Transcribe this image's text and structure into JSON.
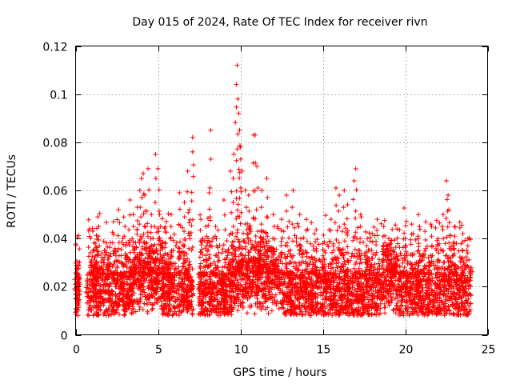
{
  "chart_data": {
    "type": "scatter",
    "title": "Day 015 of 2024, Rate Of TEC Index for receiver rivn",
    "xlabel": "GPS time / hours",
    "ylabel": "ROTI / TECUs",
    "xlim": [
      0,
      25
    ],
    "ylim": [
      0,
      0.12
    ],
    "x_ticks": [
      0,
      5,
      10,
      15,
      20,
      25
    ],
    "x_tick_labels": [
      "0",
      "5",
      "10",
      "15",
      "20",
      "25"
    ],
    "y_ticks": [
      0,
      0.02,
      0.04,
      0.06,
      0.08,
      0.1,
      0.12
    ],
    "y_tick_labels": [
      "0",
      "0.02",
      "0.04",
      "0.06",
      "0.08",
      "0.1",
      "0.12"
    ],
    "grid": true,
    "marker": "+",
    "color": "#ff0000",
    "data_gap_hours": [
      0.25,
      0.7
    ],
    "data_gap2_hours": [
      7.15,
      7.45
    ],
    "series": [
      {
        "name": "ROTI",
        "points": [
          [
            0.0,
            0.015
          ],
          [
            0.05,
            0.011
          ],
          [
            0.1,
            0.02
          ],
          [
            0.15,
            0.008
          ],
          [
            0.2,
            0.017
          ],
          [
            0.7,
            0.016
          ],
          [
            0.85,
            0.044
          ],
          [
            0.95,
            0.03
          ],
          [
            1.2,
            0.038
          ],
          [
            1.35,
            0.049
          ],
          [
            1.4,
            0.045
          ],
          [
            1.6,
            0.034
          ],
          [
            2.0,
            0.033
          ],
          [
            2.3,
            0.047
          ],
          [
            2.6,
            0.052
          ],
          [
            3.0,
            0.045
          ],
          [
            3.3,
            0.056
          ],
          [
            3.5,
            0.05
          ],
          [
            3.75,
            0.053
          ],
          [
            3.9,
            0.06
          ],
          [
            4.0,
            0.065
          ],
          [
            4.1,
            0.067
          ],
          [
            4.2,
            0.058
          ],
          [
            4.4,
            0.069
          ],
          [
            4.6,
            0.05
          ],
          [
            4.85,
            0.075
          ],
          [
            5.0,
            0.069
          ],
          [
            5.1,
            0.05
          ],
          [
            5.5,
            0.047
          ],
          [
            5.8,
            0.05
          ],
          [
            6.3,
            0.059
          ],
          [
            6.6,
            0.055
          ],
          [
            6.8,
            0.068
          ],
          [
            6.9,
            0.052
          ],
          [
            7.1,
            0.082
          ],
          [
            7.1,
            0.076
          ],
          [
            7.6,
            0.048
          ],
          [
            7.9,
            0.045
          ],
          [
            8.1,
            0.059
          ],
          [
            8.2,
            0.085
          ],
          [
            8.5,
            0.045
          ],
          [
            9.0,
            0.056
          ],
          [
            9.4,
            0.068
          ],
          [
            9.6,
            0.075
          ],
          [
            9.75,
            0.104
          ],
          [
            9.8,
            0.112
          ],
          [
            9.85,
            0.098
          ],
          [
            9.9,
            0.092
          ],
          [
            9.95,
            0.085
          ],
          [
            10.0,
            0.078
          ],
          [
            10.1,
            0.068
          ],
          [
            10.3,
            0.06
          ],
          [
            10.5,
            0.058
          ],
          [
            10.8,
            0.083
          ],
          [
            10.9,
            0.083
          ],
          [
            11.0,
            0.07
          ],
          [
            11.3,
            0.06
          ],
          [
            11.6,
            0.065
          ],
          [
            12.0,
            0.05
          ],
          [
            12.5,
            0.048
          ],
          [
            12.8,
            0.058
          ],
          [
            13.2,
            0.06
          ],
          [
            13.6,
            0.05
          ],
          [
            14.0,
            0.048
          ],
          [
            14.5,
            0.042
          ],
          [
            15.0,
            0.038
          ],
          [
            15.5,
            0.048
          ],
          [
            15.8,
            0.061
          ],
          [
            16.0,
            0.058
          ],
          [
            16.3,
            0.06
          ],
          [
            16.5,
            0.054
          ],
          [
            16.9,
            0.064
          ],
          [
            17.0,
            0.069
          ],
          [
            17.3,
            0.05
          ],
          [
            17.7,
            0.04
          ],
          [
            18.0,
            0.042
          ],
          [
            18.3,
            0.048
          ],
          [
            18.7,
            0.045
          ],
          [
            19.0,
            0.04
          ],
          [
            19.5,
            0.044
          ],
          [
            20.0,
            0.04
          ],
          [
            20.4,
            0.046
          ],
          [
            20.8,
            0.05
          ],
          [
            21.2,
            0.043
          ],
          [
            21.6,
            0.045
          ],
          [
            22.0,
            0.04
          ],
          [
            22.3,
            0.05
          ],
          [
            22.5,
            0.064
          ],
          [
            22.6,
            0.058
          ],
          [
            22.65,
            0.052
          ],
          [
            23.0,
            0.045
          ],
          [
            23.5,
            0.042
          ],
          [
            23.8,
            0.04
          ],
          [
            24.0,
            0.028
          ]
        ]
      }
    ]
  }
}
